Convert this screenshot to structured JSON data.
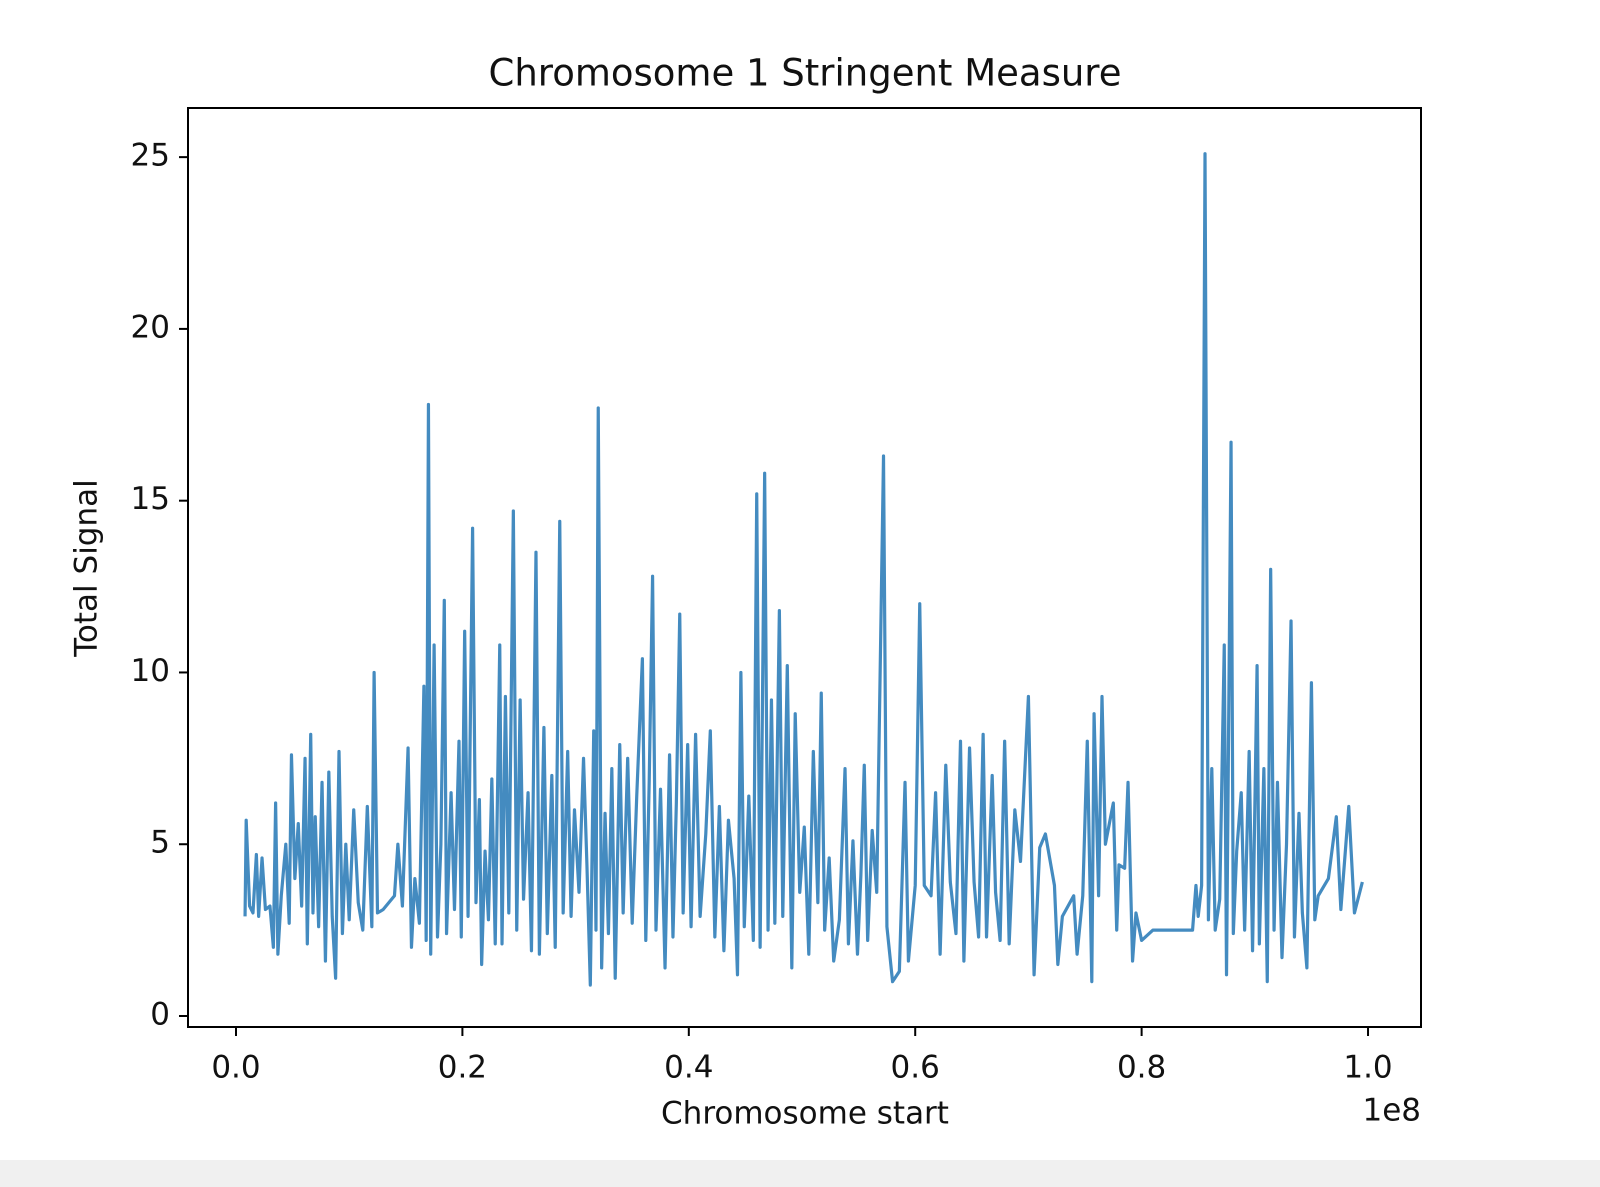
{
  "chart_data": {
    "type": "line",
    "title": "Chromosome 1 Stringent Measure",
    "x_label": "Chromosome start",
    "y_label": "Total Signal",
    "x_offset_text": "1e8",
    "xlim": [
      -4240000,
      104680000
    ],
    "ylim": [
      -0.32,
      26.43
    ],
    "xticks": [
      {
        "value": 0,
        "label": "0.0"
      },
      {
        "value": 20000000,
        "label": "0.2"
      },
      {
        "value": 40000000,
        "label": "0.4"
      },
      {
        "value": 60000000,
        "label": "0.6"
      },
      {
        "value": 80000000,
        "label": "0.8"
      },
      {
        "value": 100000000,
        "label": "1.0"
      }
    ],
    "yticks": [
      0,
      5,
      10,
      15,
      20,
      25
    ],
    "grid": false,
    "x": [
      800000,
      900000,
      1200000,
      1500000,
      1800000,
      2000000,
      2300000,
      2600000,
      3000000,
      3300000,
      3500000,
      3700000,
      4000000,
      4400000,
      4700000,
      4900000,
      5200000,
      5500000,
      5800000,
      6100000,
      6300000,
      6600000,
      6800000,
      7000000,
      7300000,
      7600000,
      7900000,
      8200000,
      8500000,
      8800000,
      9100000,
      9400000,
      9700000,
      10000000,
      10400000,
      10800000,
      11200000,
      11600000,
      12000000,
      12200000,
      12500000,
      13000000,
      14000000,
      14300000,
      14700000,
      15200000,
      15500000,
      15800000,
      16200000,
      16600000,
      16800000,
      17000000,
      17200000,
      17500000,
      17800000,
      18100000,
      18400000,
      18600000,
      19000000,
      19300000,
      19700000,
      19900000,
      20200000,
      20500000,
      20900000,
      21200000,
      21500000,
      21700000,
      22000000,
      22300000,
      22600000,
      22900000,
      23300000,
      23500000,
      23800000,
      24100000,
      24500000,
      24800000,
      25100000,
      25400000,
      25800000,
      26100000,
      26500000,
      26800000,
      27200000,
      27500000,
      27900000,
      28200000,
      28600000,
      28900000,
      29300000,
      29600000,
      29900000,
      30300000,
      30700000,
      31000000,
      31300000,
      31600000,
      31800000,
      32000000,
      32300000,
      32600000,
      32900000,
      33200000,
      33500000,
      33900000,
      34200000,
      34600000,
      35000000,
      35400000,
      35900000,
      36200000,
      36500000,
      36800000,
      37100000,
      37500000,
      37900000,
      38300000,
      38600000,
      38900000,
      39200000,
      39500000,
      39900000,
      40200000,
      40600000,
      41000000,
      41500000,
      41900000,
      42300000,
      42700000,
      43100000,
      43500000,
      44000000,
      44300000,
      44600000,
      44900000,
      45300000,
      45700000,
      46000000,
      46300000,
      46700000,
      47000000,
      47300000,
      47600000,
      48000000,
      48300000,
      48700000,
      49100000,
      49400000,
      49800000,
      50200000,
      50600000,
      51000000,
      51400000,
      51700000,
      52000000,
      52400000,
      52800000,
      53300000,
      53800000,
      54100000,
      54500000,
      54900000,
      55200000,
      55500000,
      55800000,
      56200000,
      56600000,
      57200000,
      57500000,
      58000000,
      58600000,
      59100000,
      59400000,
      60000000,
      60400000,
      60800000,
      61400000,
      61800000,
      62200000,
      62700000,
      63100000,
      63600000,
      64000000,
      64300000,
      64800000,
      65200000,
      65600000,
      66000000,
      66300000,
      66800000,
      67100000,
      67500000,
      67900000,
      68300000,
      68800000,
      69300000,
      70000000,
      70500000,
      71000000,
      71500000,
      72300000,
      72600000,
      73000000,
      74000000,
      74300000,
      74800000,
      75200000,
      75600000,
      75800000,
      76200000,
      76500000,
      76800000,
      77500000,
      77800000,
      78000000,
      78500000,
      78800000,
      79200000,
      79500000,
      80000000,
      81000000,
      83000000,
      84500000,
      84800000,
      85000000,
      85300000,
      85600000,
      85900000,
      86200000,
      86500000,
      86900000,
      87300000,
      87500000,
      87900000,
      88100000,
      88400000,
      88800000,
      89100000,
      89500000,
      89800000,
      90200000,
      90400000,
      90800000,
      91100000,
      91400000,
      91700000,
      92000000,
      92400000,
      92800000,
      93200000,
      93500000,
      93900000,
      94200000,
      94600000,
      95000000,
      95300000,
      95600000,
      96500000,
      97200000,
      97600000,
      98300000,
      98800000,
      99500000
    ],
    "series": [
      {
        "name": "Total Signal",
        "color": "#448bc0",
        "values": [
          2.9,
          5.7,
          3.2,
          3.0,
          4.7,
          2.9,
          4.6,
          3.1,
          3.2,
          2.0,
          6.2,
          1.8,
          3.5,
          5.0,
          2.7,
          7.6,
          4.0,
          5.6,
          3.2,
          7.5,
          2.1,
          8.2,
          3.0,
          5.8,
          2.6,
          6.8,
          1.6,
          7.1,
          2.9,
          1.1,
          7.7,
          2.4,
          5.0,
          2.8,
          6.0,
          3.3,
          2.5,
          6.1,
          2.6,
          10.0,
          3.0,
          3.1,
          3.5,
          5.0,
          3.2,
          7.8,
          2.0,
          4.0,
          2.7,
          9.6,
          2.2,
          17.8,
          1.8,
          10.8,
          2.3,
          5.0,
          12.1,
          2.4,
          6.5,
          3.1,
          8.0,
          2.3,
          11.2,
          2.9,
          14.2,
          3.3,
          6.3,
          1.5,
          4.8,
          2.8,
          6.9,
          2.1,
          10.8,
          2.1,
          9.3,
          3.0,
          14.7,
          2.5,
          9.2,
          3.4,
          6.5,
          1.9,
          13.5,
          1.8,
          8.4,
          2.4,
          7.0,
          2.0,
          14.4,
          3.0,
          7.7,
          2.9,
          6.0,
          3.6,
          7.5,
          4.4,
          0.9,
          8.3,
          2.5,
          17.7,
          1.4,
          5.9,
          2.4,
          7.2,
          1.1,
          7.9,
          3.0,
          7.5,
          2.7,
          6.4,
          10.4,
          2.2,
          6.8,
          12.8,
          2.5,
          6.6,
          1.4,
          7.6,
          2.3,
          6.2,
          11.7,
          3.0,
          7.9,
          2.6,
          8.2,
          2.9,
          5.3,
          8.3,
          2.3,
          6.1,
          1.9,
          5.7,
          4.0,
          1.2,
          10.0,
          2.6,
          6.4,
          2.2,
          15.2,
          2.0,
          15.8,
          2.5,
          9.2,
          2.7,
          11.8,
          2.9,
          10.2,
          1.4,
          8.8,
          3.6,
          5.5,
          1.8,
          7.7,
          3.3,
          9.4,
          2.5,
          4.6,
          1.6,
          2.8,
          7.2,
          2.1,
          5.1,
          1.8,
          4.1,
          7.3,
          2.2,
          5.4,
          3.6,
          16.3,
          2.6,
          1.0,
          1.3,
          6.8,
          1.6,
          3.8,
          12.0,
          3.8,
          3.5,
          6.5,
          1.8,
          7.3,
          3.9,
          2.4,
          8.0,
          1.6,
          7.8,
          3.9,
          2.3,
          8.2,
          2.3,
          7.0,
          3.6,
          2.2,
          8.0,
          2.1,
          6.0,
          4.5,
          9.3,
          1.2,
          4.9,
          5.3,
          3.8,
          1.5,
          2.9,
          3.5,
          1.8,
          3.5,
          8.0,
          1.0,
          8.8,
          3.5,
          9.3,
          5.0,
          6.2,
          2.5,
          4.4,
          4.3,
          6.8,
          1.6,
          3.0,
          2.2,
          2.5,
          2.5,
          2.5,
          3.8,
          2.9,
          3.8,
          25.1,
          2.8,
          7.2,
          2.5,
          3.4,
          10.8,
          1.2,
          16.7,
          2.4,
          4.8,
          6.5,
          2.5,
          7.7,
          1.9,
          10.2,
          2.1,
          7.2,
          1.0,
          13.0,
          2.5,
          6.8,
          1.7,
          5.0,
          11.5,
          2.3,
          5.9,
          3.0,
          1.4,
          9.7,
          2.8,
          3.5,
          4.0,
          5.8,
          3.1,
          6.1,
          3.0,
          3.9
        ]
      }
    ]
  }
}
